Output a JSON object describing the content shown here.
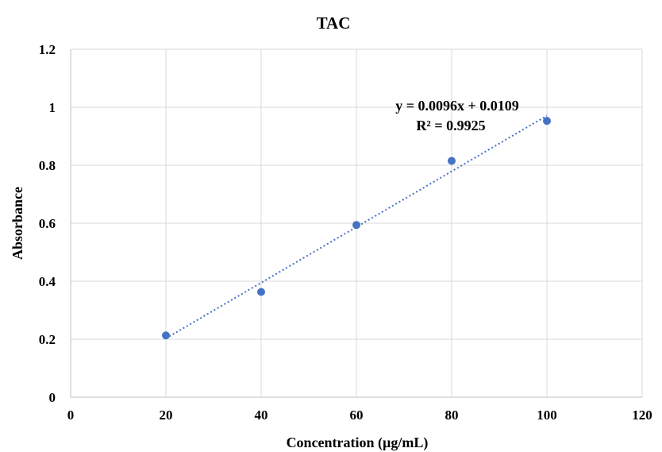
{
  "chart_data": {
    "type": "scatter",
    "title": "TAC",
    "xlabel": "Concentration  (µg/mL)",
    "ylabel": "Absorbance",
    "xlim": [
      0,
      120
    ],
    "ylim": [
      0,
      1.2
    ],
    "x_ticks": [
      0,
      20,
      40,
      60,
      80,
      100,
      120
    ],
    "y_ticks": [
      0,
      0.2,
      0.4,
      0.6,
      0.8,
      1,
      1.2
    ],
    "x_tick_labels": [
      "0",
      "20",
      "40",
      "60",
      "80",
      "100",
      "120"
    ],
    "y_tick_labels": [
      "0",
      "0.2",
      "0.4",
      "0.6",
      "0.8",
      "1",
      "1.2"
    ],
    "grid": true,
    "series": [
      {
        "x": [
          20,
          40,
          60,
          80,
          100
        ],
        "y": [
          0.213,
          0.363,
          0.594,
          0.815,
          0.953
        ],
        "color": "#4472c4"
      }
    ],
    "trendline": {
      "type": "linear",
      "slope": 0.0096,
      "intercept": 0.0109,
      "x_range": [
        20,
        100
      ],
      "color": "#4472c4"
    },
    "annotations": {
      "equation": "y = 0.0096x + 0.0109",
      "r_squared": "R² = 0.9925"
    }
  }
}
